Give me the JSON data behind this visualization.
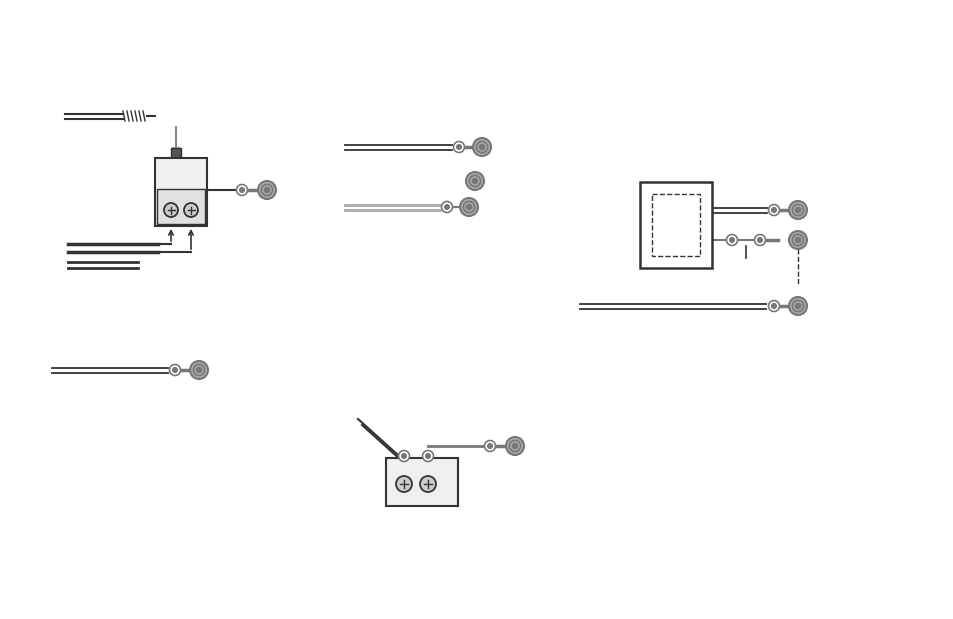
{
  "bg_color": "#ffffff",
  "dark": "#333333",
  "gray": "#777777",
  "light_gray": "#aaaaaa",
  "mid_gray": "#999999"
}
